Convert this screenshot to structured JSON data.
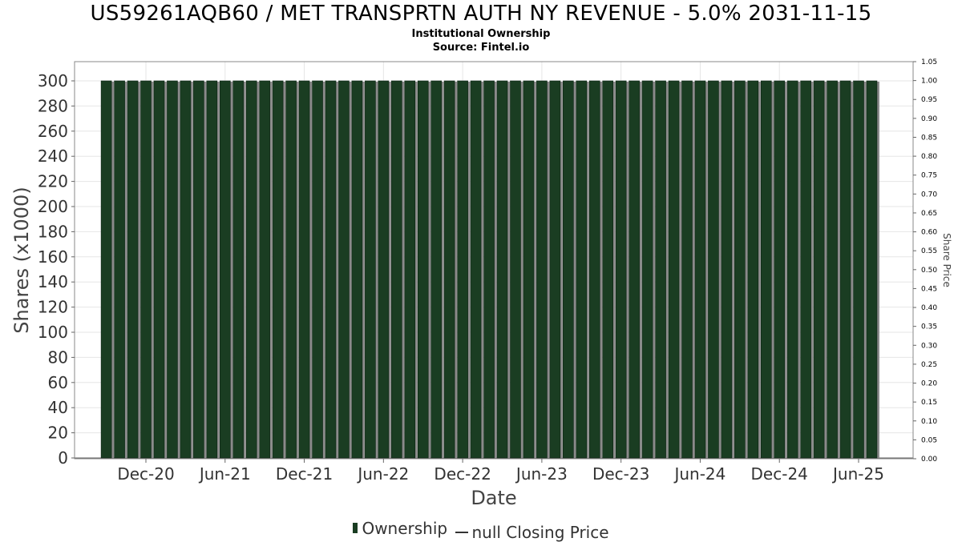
{
  "title": "US59261AQB60 / MET TRANSPRTN AUTH NY REVENUE - 5.0% 2031-11-15",
  "subtitle": "Institutional Ownership",
  "source": "Source: Fintel.io",
  "legend": {
    "ownership_label": "Ownership",
    "price_label": "null Closing Price"
  },
  "colors": {
    "bar_fill": "#1a3d22",
    "bar_shadow": "#8a8a8a",
    "grid": "#e6e6e6",
    "axis": "#666666"
  },
  "chart_data": {
    "type": "bar",
    "xlabel": "Date",
    "ylabel": "Shares (x1000)",
    "y2label": "Share Price",
    "ylim": [
      0,
      310
    ],
    "y2lim": [
      0,
      1.05
    ],
    "yticks": [
      0,
      20,
      40,
      60,
      80,
      100,
      120,
      140,
      160,
      180,
      200,
      220,
      240,
      260,
      280,
      300
    ],
    "y2ticks": [
      "0.00",
      "0.05",
      "0.10",
      "0.15",
      "0.20",
      "0.25",
      "0.30",
      "0.35",
      "0.40",
      "0.45",
      "0.50",
      "0.55",
      "0.60",
      "0.65",
      "0.70",
      "0.75",
      "0.80",
      "0.85",
      "0.90",
      "0.95",
      "1.00",
      "1.05"
    ],
    "xticks": [
      "Dec-20",
      "Jun-21",
      "Dec-21",
      "Jun-22",
      "Dec-22",
      "Jun-23",
      "Dec-23",
      "Jun-24",
      "Dec-24",
      "Jun-25"
    ],
    "x_range": [
      "Jul-20",
      "Oct-25"
    ],
    "grid": true,
    "series": [
      {
        "name": "Ownership",
        "x": [
          "Sep-20",
          "Oct-20",
          "Nov-20",
          "Dec-20",
          "Jan-21",
          "Feb-21",
          "Mar-21",
          "Apr-21",
          "May-21",
          "Jun-21",
          "Jul-21",
          "Aug-21",
          "Sep-21",
          "Oct-21",
          "Nov-21",
          "Dec-21",
          "Jan-22",
          "Feb-22",
          "Mar-22",
          "Apr-22",
          "May-22",
          "Jun-22",
          "Jul-22",
          "Aug-22",
          "Sep-22",
          "Oct-22",
          "Nov-22",
          "Dec-22",
          "Jan-23",
          "Feb-23",
          "Mar-23",
          "Apr-23",
          "May-23",
          "Jun-23",
          "Jul-23",
          "Aug-23",
          "Sep-23",
          "Oct-23",
          "Nov-23",
          "Dec-23",
          "Jan-24",
          "Feb-24",
          "Mar-24",
          "Apr-24",
          "May-24",
          "Jun-24",
          "Jul-24",
          "Aug-24",
          "Sep-24",
          "Oct-24",
          "Nov-24",
          "Dec-24",
          "Jan-25",
          "Feb-25",
          "Mar-25",
          "Apr-25",
          "May-25",
          "Jun-25",
          "Jul-25"
        ],
        "values": [
          300,
          300,
          300,
          300,
          300,
          300,
          300,
          300,
          300,
          300,
          300,
          300,
          300,
          300,
          300,
          300,
          300,
          300,
          300,
          300,
          300,
          300,
          300,
          300,
          300,
          300,
          300,
          300,
          300,
          300,
          300,
          300,
          300,
          300,
          300,
          300,
          300,
          300,
          300,
          300,
          300,
          300,
          300,
          300,
          300,
          300,
          300,
          300,
          300,
          300,
          300,
          300,
          300,
          300,
          300,
          300,
          300,
          300,
          300
        ]
      },
      {
        "name": "null Closing Price",
        "values": []
      }
    ]
  }
}
